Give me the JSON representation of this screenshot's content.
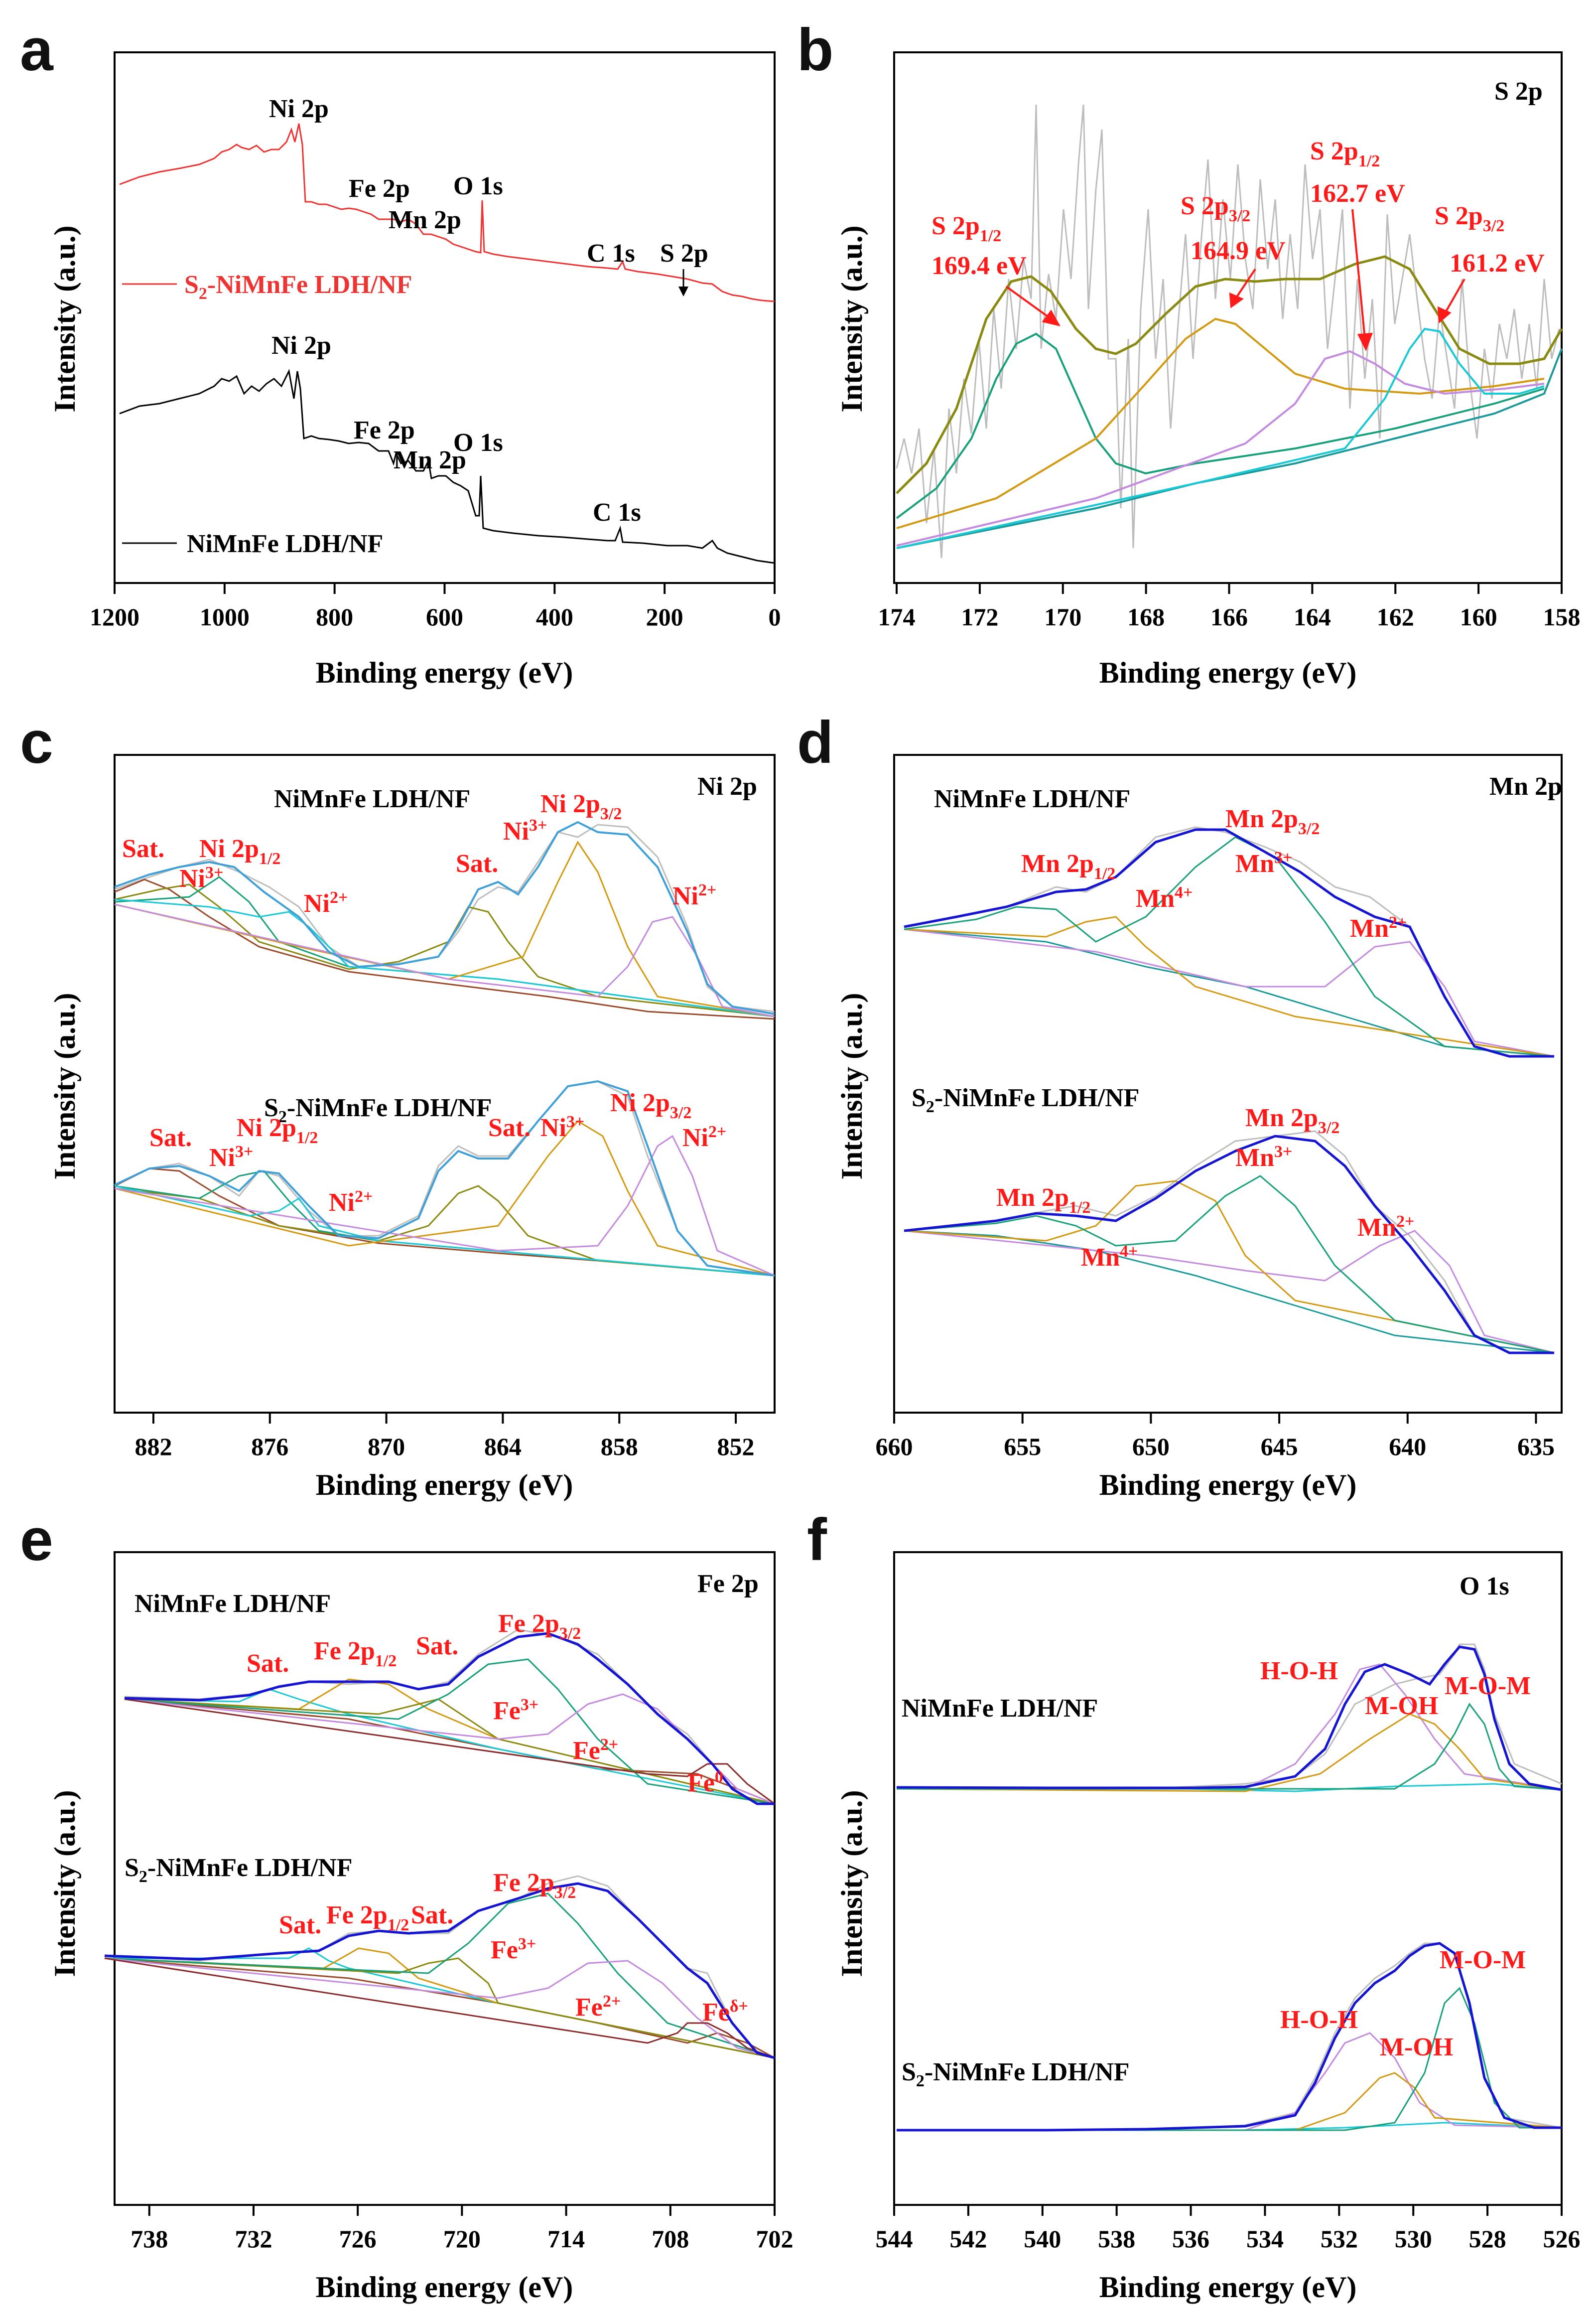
{
  "figure": {
    "panel_letters": [
      "a",
      "b",
      "c",
      "d",
      "e",
      "f"
    ]
  },
  "colors": {
    "black": "#000000",
    "red": "#ee3333",
    "gray": "#bdbdbd",
    "blue": "#1414d2",
    "lightblue": "#3fa0d8",
    "green": "#17a07a",
    "olive": "#8a8a10",
    "orange": "#d39a10",
    "violet": "#c48ae0",
    "cyan": "#19c9d6",
    "teal": "#1a9a9a",
    "brown": "#9a4a2a",
    "annot": "#ff1a1a"
  },
  "chart_data": [
    {
      "id": "a",
      "type": "line",
      "title": "",
      "xlabel": "Binding energy (eV)",
      "ylabel": "Intensity (a.u.)",
      "xlim": [
        1200,
        0
      ],
      "xticks": [
        "1200",
        "1000",
        "800",
        "600",
        "400",
        "200",
        "0"
      ],
      "series": [
        {
          "name": "S2-NiMnFe LDH/NF",
          "color": "#ee3333",
          "legend_main": "S",
          "legend_sub": "2",
          "legend_rest": "-NiMnFe LDH/NF",
          "peaks": [
            "Ni 2p",
            "Fe 2p",
            "Mn 2p",
            "O 1s",
            "C 1s",
            "S 2p"
          ]
        },
        {
          "name": "NiMnFe LDH/NF",
          "color": "#000000",
          "peaks": [
            "Ni 2p",
            "Fe 2p",
            "Mn 2p",
            "O 1s",
            "C 1s"
          ]
        }
      ]
    },
    {
      "id": "b",
      "type": "line",
      "title": "S 2p",
      "xlabel": "Binding energy (eV)",
      "ylabel": "Intensity (a.u.)",
      "xlim": [
        174,
        158
      ],
      "xticks": [
        "174",
        "172",
        "170",
        "168",
        "166",
        "164",
        "162",
        "160",
        "158"
      ],
      "components": [
        {
          "name": "S 2p1/2",
          "label": "S 2p",
          "sub": "1/2",
          "energy": "169.4 eV",
          "center": 169.4,
          "color": "#17a07a"
        },
        {
          "name": "S 2p3/2",
          "label": "S 2p",
          "sub": "3/2",
          "energy": "164.9 eV",
          "center": 164.9,
          "color": "#d39a10"
        },
        {
          "name": "S 2p1/2",
          "label": "S 2p",
          "sub": "1/2",
          "energy": "162.7 eV",
          "center": 162.7,
          "color": "#c48ae0"
        },
        {
          "name": "S 2p3/2",
          "label": "S 2p",
          "sub": "3/2",
          "energy": "161.2 eV",
          "center": 161.2,
          "color": "#19c9d6"
        }
      ]
    },
    {
      "id": "c",
      "type": "line",
      "title": "Ni 2p",
      "xlabel": "Binding energy (eV)",
      "ylabel": "Intensity (a.u.)",
      "xlim": [
        884,
        850
      ],
      "xticks": [
        "882",
        "876",
        "870",
        "864",
        "858",
        "852"
      ],
      "samples": [
        "NiMnFe LDH/NF",
        "S2-NiMnFe LDH/NF"
      ],
      "peak_labels": [
        "Sat.",
        "Ni3+",
        "Ni 2p1/2",
        "Ni2+",
        "Sat.",
        "Ni3+",
        "Ni 2p3/2",
        "Ni2+"
      ]
    },
    {
      "id": "d",
      "type": "line",
      "title": "Mn 2p",
      "xlabel": "Binding energy (eV)",
      "ylabel": "Intensity (a.u.)",
      "xlim": [
        660,
        634
      ],
      "xticks": [
        "660",
        "655",
        "650",
        "645",
        "640",
        "635"
      ],
      "samples": [
        "NiMnFe LDH/NF",
        "S2-NiMnFe LDH/NF"
      ],
      "peak_labels": [
        "Mn 2p1/2",
        "Mn4+",
        "Mn 2p3/2",
        "Mn3+",
        "Mn2+"
      ]
    },
    {
      "id": "e",
      "type": "line",
      "title": "Fe 2p",
      "xlabel": "Binding energy (eV)",
      "ylabel": "Intensity (a.u.)",
      "xlim": [
        740,
        702
      ],
      "xticks": [
        "738",
        "732",
        "726",
        "720",
        "714",
        "708",
        "702"
      ],
      "samples": [
        "NiMnFe LDH/NF",
        "S2-NiMnFe LDH/NF"
      ],
      "peak_labels": [
        "Sat.",
        "Fe 2p1/2",
        "Sat.",
        "Fe 2p3/2",
        "Fe3+",
        "Fe2+",
        "Fe0",
        "Feδ+"
      ]
    },
    {
      "id": "f",
      "type": "line",
      "title": "O 1s",
      "xlabel": "Binding energy (eV)",
      "ylabel": "Intensity (a.u.)",
      "xlim": [
        544,
        526
      ],
      "xticks": [
        "544",
        "542",
        "540",
        "538",
        "536",
        "534",
        "532",
        "530",
        "528",
        "526"
      ],
      "samples": [
        "NiMnFe LDH/NF",
        "S2-NiMnFe LDH/NF"
      ],
      "peak_labels": [
        "H-O-H",
        "M-OH",
        "M-O-M"
      ]
    }
  ]
}
